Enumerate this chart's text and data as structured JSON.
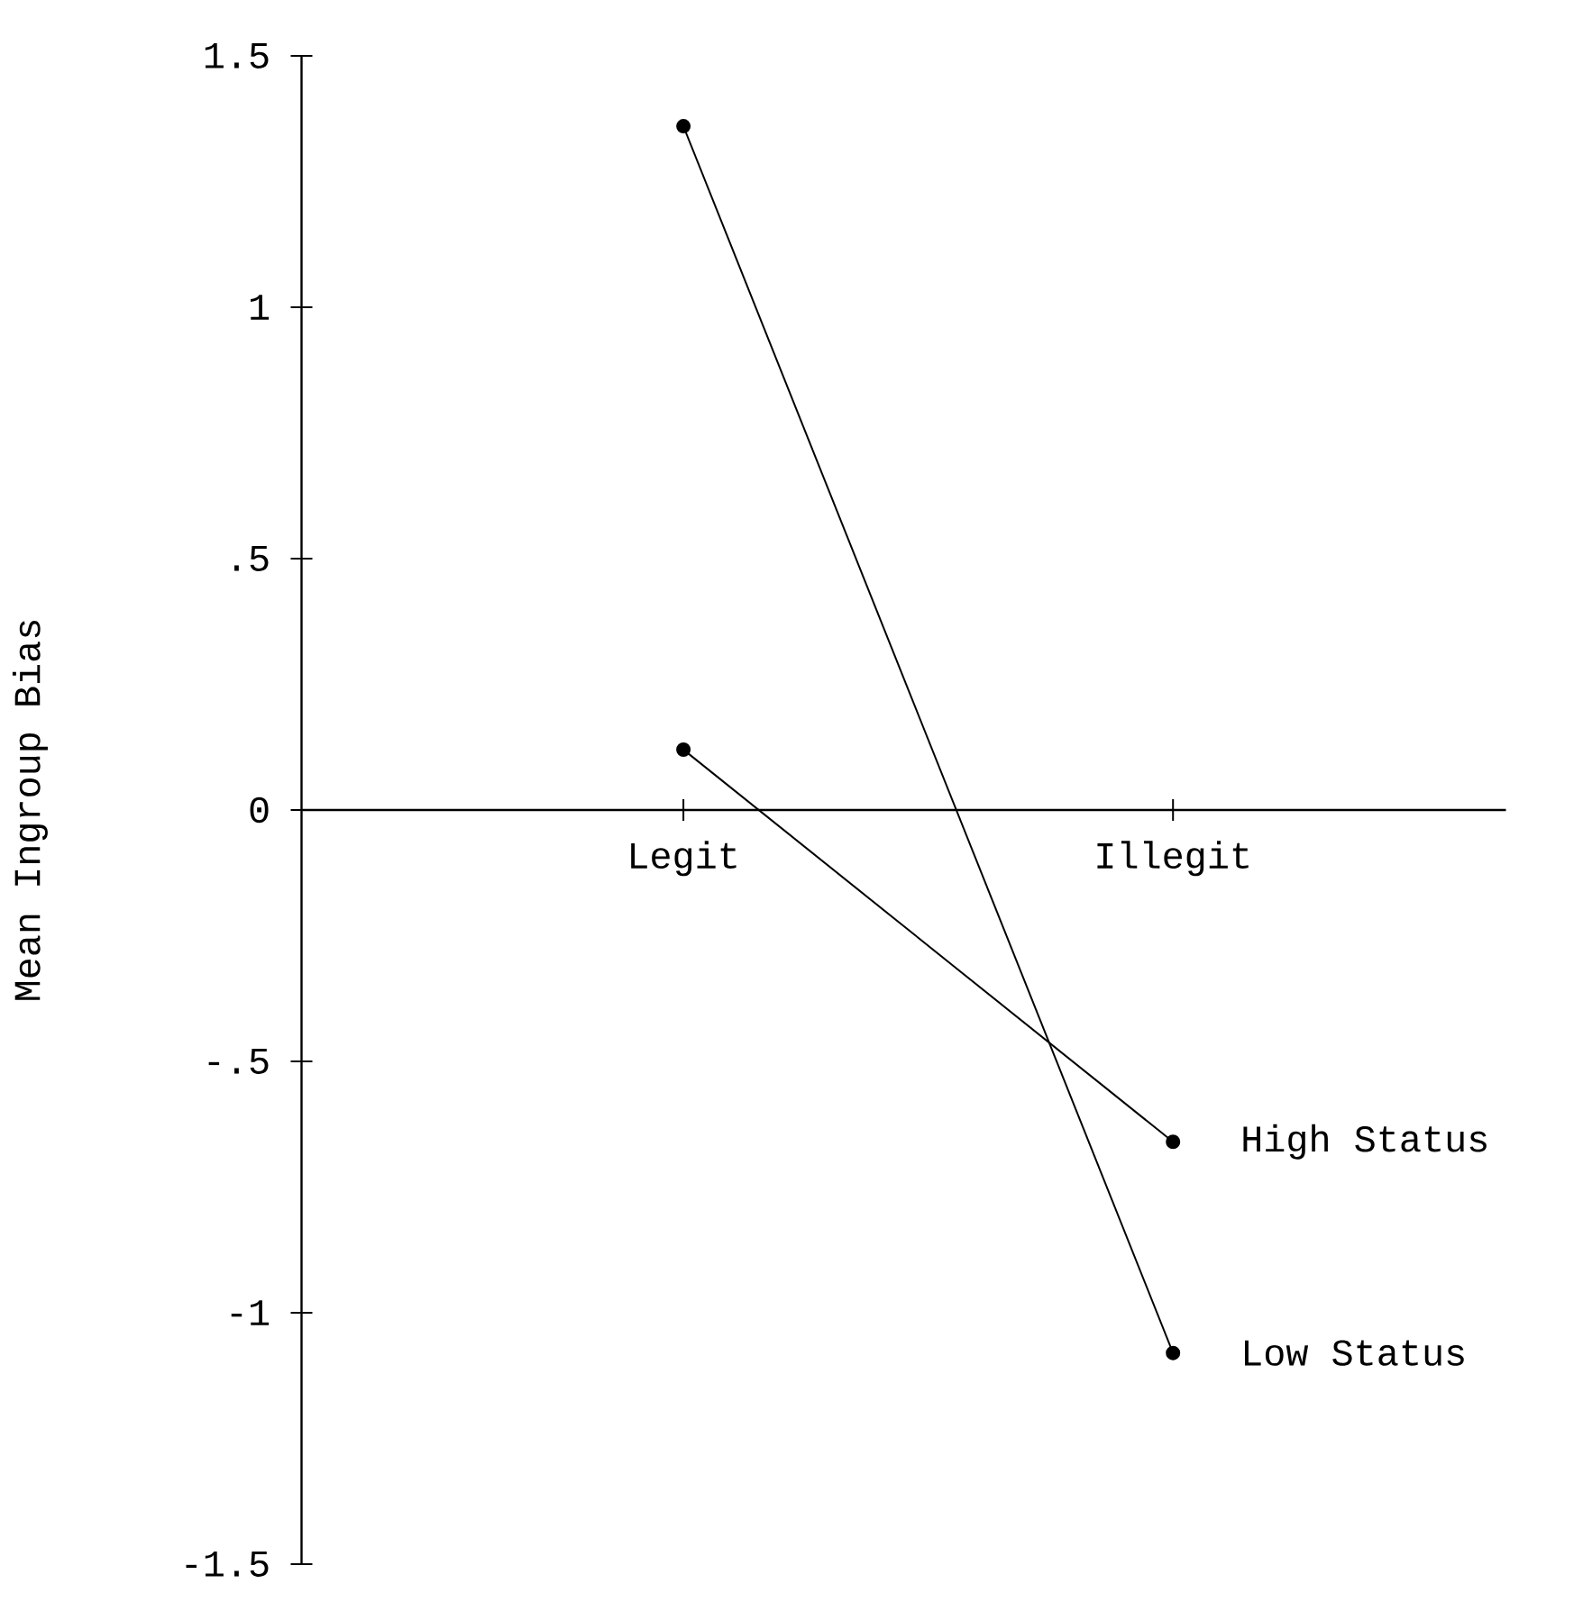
{
  "chart_data": {
    "type": "line",
    "ylabel": "Mean Ingroup Bias",
    "categories": [
      "Legit",
      "Illegit"
    ],
    "series": [
      {
        "name": "High Status",
        "color": "#000000",
        "values": [
          0.12,
          -0.66
        ]
      },
      {
        "name": "Low Status",
        "color": "#000000",
        "values": [
          1.36,
          -1.08
        ]
      }
    ],
    "ylim": [
      -1.5,
      1.5
    ],
    "yticks": [
      {
        "value": -1.5,
        "label": "-1.5"
      },
      {
        "value": -1,
        "label": "-1"
      },
      {
        "value": -0.5,
        "label": "-.5"
      },
      0,
      {
        "value": 0.5,
        "label": ".5"
      },
      1,
      1.5
    ],
    "grid": false,
    "legend": false,
    "marker": "circle",
    "line_style": "solid"
  }
}
